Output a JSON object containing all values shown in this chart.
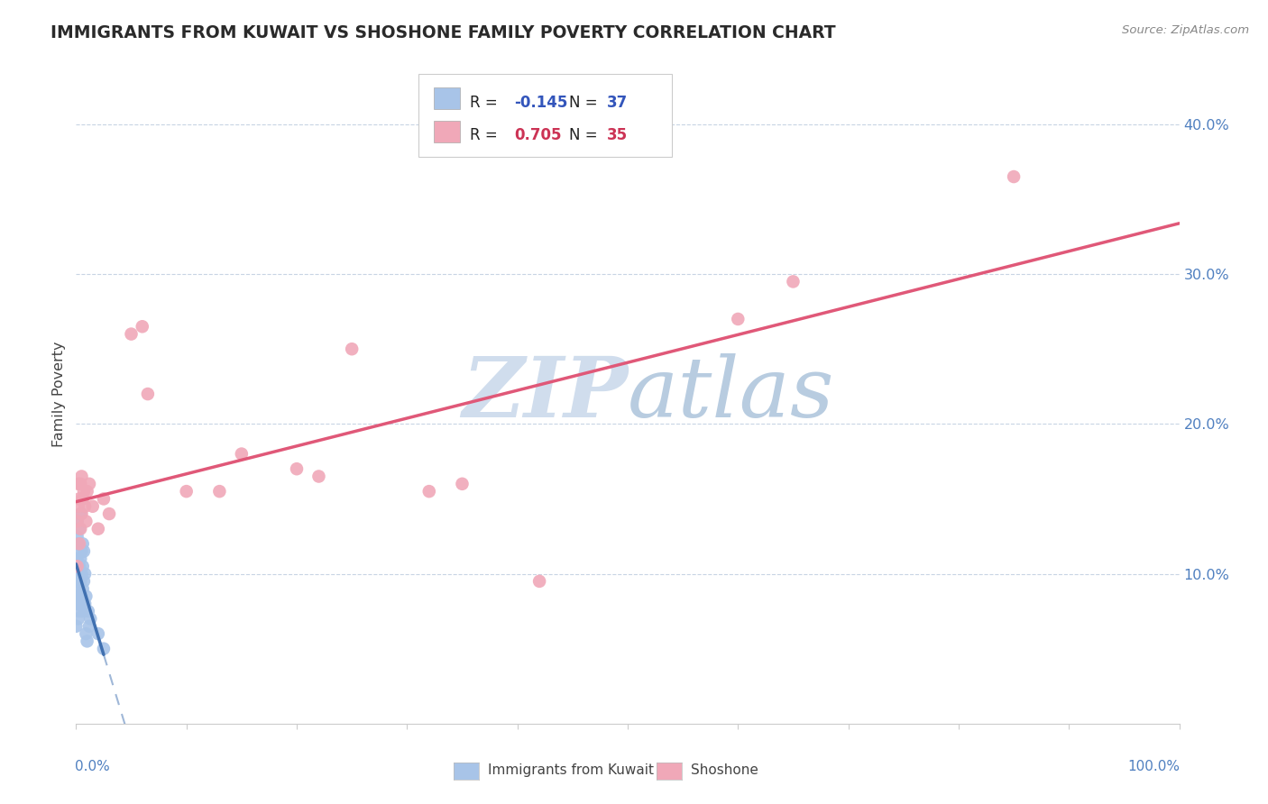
{
  "title": "IMMIGRANTS FROM KUWAIT VS SHOSHONE FAMILY POVERTY CORRELATION CHART",
  "source": "Source: ZipAtlas.com",
  "ylabel": "Family Poverty",
  "watermark": "ZIPatlas",
  "kuwait_color": "#a8c4e8",
  "shoshone_color": "#f0a8b8",
  "kuwait_line_color": "#4070b0",
  "shoshone_line_color": "#e05878",
  "xlim": [
    0.0,
    1.0
  ],
  "ylim": [
    0.0,
    0.44
  ],
  "grid_color": "#c8d4e4",
  "background_color": "#ffffff",
  "title_color": "#2a2a2a",
  "axis_label_color": "#5080c0",
  "watermark_color": "#d0dded",
  "legend_color_r1": "#3355bb",
  "legend_color_r2": "#cc3355",
  "kuwait_x": [
    0.0,
    0.0,
    0.001,
    0.001,
    0.001,
    0.001,
    0.002,
    0.002,
    0.002,
    0.002,
    0.003,
    0.003,
    0.003,
    0.003,
    0.004,
    0.004,
    0.004,
    0.004,
    0.005,
    0.005,
    0.005,
    0.006,
    0.006,
    0.006,
    0.007,
    0.007,
    0.007,
    0.008,
    0.008,
    0.009,
    0.009,
    0.01,
    0.011,
    0.012,
    0.013,
    0.02,
    0.025
  ],
  "kuwait_y": [
    0.065,
    0.08,
    0.095,
    0.11,
    0.125,
    0.135,
    0.07,
    0.085,
    0.1,
    0.12,
    0.075,
    0.09,
    0.105,
    0.13,
    0.08,
    0.095,
    0.11,
    0.14,
    0.085,
    0.1,
    0.115,
    0.09,
    0.105,
    0.12,
    0.075,
    0.095,
    0.115,
    0.08,
    0.1,
    0.085,
    0.06,
    0.055,
    0.075,
    0.065,
    0.07,
    0.06,
    0.05
  ],
  "shoshone_x": [
    0.001,
    0.001,
    0.002,
    0.002,
    0.003,
    0.003,
    0.004,
    0.004,
    0.005,
    0.005,
    0.006,
    0.007,
    0.008,
    0.009,
    0.01,
    0.012,
    0.015,
    0.02,
    0.025,
    0.03,
    0.05,
    0.06,
    0.065,
    0.1,
    0.13,
    0.15,
    0.2,
    0.22,
    0.25,
    0.32,
    0.35,
    0.42,
    0.6,
    0.65,
    0.85
  ],
  "shoshone_y": [
    0.105,
    0.135,
    0.145,
    0.16,
    0.12,
    0.15,
    0.13,
    0.16,
    0.14,
    0.165,
    0.15,
    0.155,
    0.145,
    0.135,
    0.155,
    0.16,
    0.145,
    0.13,
    0.15,
    0.14,
    0.26,
    0.265,
    0.22,
    0.155,
    0.155,
    0.18,
    0.17,
    0.165,
    0.25,
    0.155,
    0.16,
    0.095,
    0.27,
    0.295,
    0.365
  ]
}
